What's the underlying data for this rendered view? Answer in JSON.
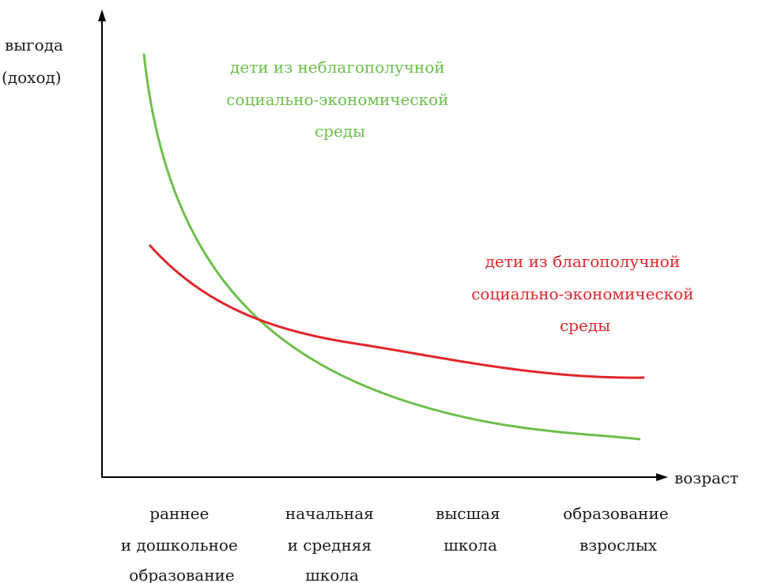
{
  "axes": {
    "y_label": [
      "выгода",
      "(доход)"
    ],
    "x_label": "возраст"
  },
  "stages": [
    {
      "lines": [
        "раннее",
        "и дошкольное",
        "образование"
      ]
    },
    {
      "lines": [
        "начальная",
        "и средняя",
        "школа"
      ]
    },
    {
      "lines": [
        "высшая",
        "школа"
      ]
    },
    {
      "lines": [
        "образование",
        "взрослых"
      ]
    }
  ],
  "series": [
    {
      "key": "disadvantaged",
      "label": [
        "дети из неблагополучной",
        "социально-экономической",
        "среды"
      ],
      "color": "#6cbf4a",
      "trend": "steep decline from high to low"
    },
    {
      "key": "advantaged",
      "label": [
        "дети из благополучной",
        "социально-экономической",
        "среды"
      ],
      "color": "#e0262b",
      "trend": "gentle decline, levels off"
    }
  ],
  "colors": {
    "axis": "#000000",
    "text": "#1a1a1a"
  }
}
